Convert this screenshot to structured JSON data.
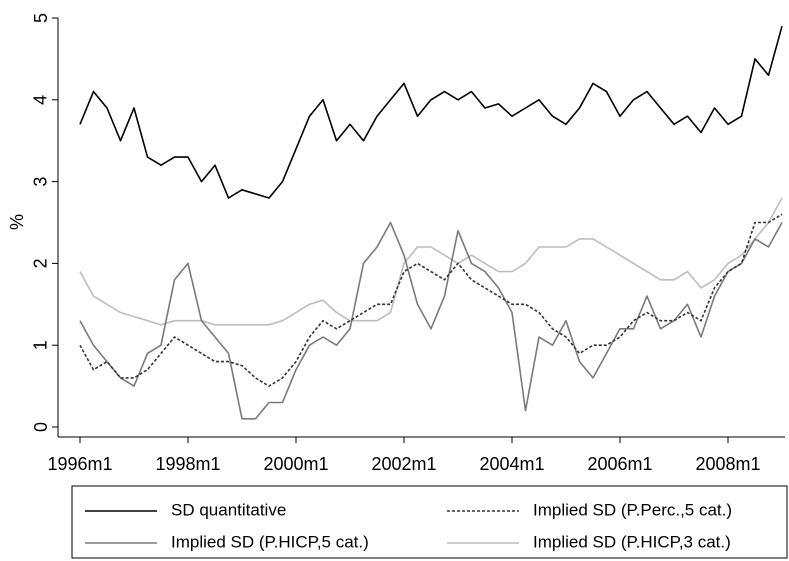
{
  "chart_data": {
    "type": "line",
    "y_label": "%",
    "x": [
      432,
      435,
      438,
      441,
      444,
      447,
      450,
      453,
      456,
      459,
      462,
      465,
      468,
      471,
      474,
      477,
      480,
      483,
      486,
      489,
      492,
      495,
      498,
      501,
      504,
      507,
      510,
      513,
      516,
      519,
      522,
      525,
      528,
      531,
      534,
      537,
      540,
      543,
      546,
      549,
      552,
      555,
      558,
      561,
      564,
      567,
      570,
      573,
      576,
      579,
      582,
      585,
      588
    ],
    "xlim": [
      432,
      588
    ],
    "xticks": [
      {
        "value": 432,
        "label": "1996m1"
      },
      {
        "value": 456,
        "label": "1998m1"
      },
      {
        "value": 480,
        "label": "2000m1"
      },
      {
        "value": 504,
        "label": "2002m1"
      },
      {
        "value": 528,
        "label": "2004m1"
      },
      {
        "value": 552,
        "label": "2006m1"
      },
      {
        "value": 576,
        "label": "2008m1"
      }
    ],
    "ylim": [
      0,
      5
    ],
    "yticks": [
      0,
      1,
      2,
      3,
      4,
      5
    ],
    "legend": "bottom",
    "series": [
      {
        "name": "SD quantitative",
        "color": "#000000",
        "dash": "solid",
        "values": [
          3.7,
          4.1,
          3.9,
          3.5,
          3.9,
          3.3,
          3.2,
          3.3,
          3.3,
          3.0,
          3.2,
          2.8,
          2.9,
          2.85,
          2.8,
          3.0,
          3.4,
          3.8,
          4.0,
          3.5,
          3.7,
          3.5,
          3.8,
          4.0,
          4.2,
          3.8,
          4.0,
          4.1,
          4.0,
          4.1,
          3.9,
          3.95,
          3.8,
          3.9,
          4.0,
          3.8,
          3.7,
          3.9,
          4.2,
          4.1,
          3.8,
          4.0,
          4.1,
          3.9,
          3.7,
          3.8,
          3.6,
          3.9,
          3.7,
          3.8,
          4.5,
          4.3,
          4.9
        ]
      },
      {
        "name": "Implied SD (P.Perc.,5 cat.)",
        "color": "#333333",
        "dash": "dot",
        "values": [
          1.0,
          0.7,
          0.8,
          0.6,
          0.6,
          0.7,
          0.9,
          1.1,
          1.0,
          0.9,
          0.8,
          0.8,
          0.75,
          0.6,
          0.5,
          0.6,
          0.8,
          1.1,
          1.3,
          1.2,
          1.3,
          1.4,
          1.5,
          1.5,
          1.9,
          2.0,
          1.9,
          1.8,
          2.0,
          1.8,
          1.7,
          1.6,
          1.5,
          1.5,
          1.4,
          1.2,
          1.1,
          0.9,
          1.0,
          1.0,
          1.1,
          1.3,
          1.4,
          1.3,
          1.3,
          1.4,
          1.3,
          1.7,
          1.9,
          2.0,
          2.5,
          2.5,
          2.6
        ]
      },
      {
        "name": "Implied SD (P.HICP,5 cat.)",
        "color": "#7a7a7a",
        "dash": "solid",
        "values": [
          1.3,
          1.0,
          0.8,
          0.6,
          0.5,
          0.9,
          1.0,
          1.8,
          2.0,
          1.3,
          1.1,
          0.9,
          0.1,
          0.1,
          0.3,
          0.3,
          0.7,
          1.0,
          1.1,
          1.0,
          1.2,
          2.0,
          2.2,
          2.5,
          2.1,
          1.5,
          1.2,
          1.6,
          2.4,
          2.0,
          1.9,
          1.7,
          1.4,
          0.2,
          1.1,
          1.0,
          1.3,
          0.8,
          0.6,
          0.9,
          1.2,
          1.2,
          1.6,
          1.2,
          1.3,
          1.5,
          1.1,
          1.6,
          1.9,
          2.0,
          2.3,
          2.2,
          2.5
        ]
      },
      {
        "name": "Implied SD (P.HICP,3 cat.)",
        "color": "#bdbdbd",
        "dash": "solid",
        "values": [
          1.9,
          1.6,
          1.5,
          1.4,
          1.35,
          1.3,
          1.25,
          1.3,
          1.3,
          1.3,
          1.25,
          1.25,
          1.25,
          1.25,
          1.25,
          1.3,
          1.4,
          1.5,
          1.55,
          1.4,
          1.3,
          1.3,
          1.3,
          1.4,
          2.0,
          2.2,
          2.2,
          2.1,
          2.0,
          2.1,
          2.0,
          1.9,
          1.9,
          2.0,
          2.2,
          2.2,
          2.2,
          2.3,
          2.3,
          2.2,
          2.1,
          2.0,
          1.9,
          1.8,
          1.8,
          1.9,
          1.7,
          1.8,
          2.0,
          2.1,
          2.3,
          2.5,
          2.8
        ]
      }
    ]
  }
}
